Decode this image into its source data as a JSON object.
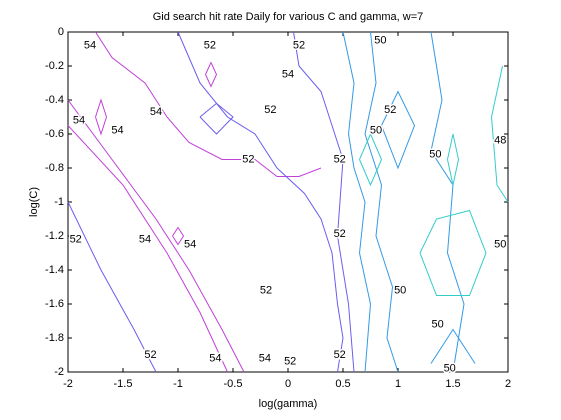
{
  "chart_data": {
    "type": "contour",
    "title": "Gid search hit rate Daily for various C and gamma, w=7",
    "xlabel": "log(gamma)",
    "ylabel": "log(C)",
    "xlim": [
      -2,
      2
    ],
    "ylim": [
      -2,
      0
    ],
    "xticks": [
      -2,
      -1.5,
      -1,
      -0.5,
      0,
      0.5,
      1,
      1.5,
      2
    ],
    "yticks": [
      0,
      -0.2,
      -0.4,
      -0.6,
      -0.8,
      -1,
      -1.2,
      -1.4,
      -1.6,
      -1.8,
      -2
    ],
    "levels": [
      {
        "value": 48,
        "color": "#33cccc"
      },
      {
        "value": 50,
        "color": "#3399e6"
      },
      {
        "value": 52,
        "color": "#6a5ef0"
      },
      {
        "value": 54,
        "color": "#c040d8"
      }
    ],
    "contours": [
      {
        "level": 54,
        "x": [
          -2,
          -1.6,
          -1.2,
          -0.9,
          -0.6,
          -0.4
        ],
        "y": [
          -0.4,
          -0.75,
          -1.1,
          -1.4,
          -1.75,
          -2
        ]
      },
      {
        "level": 54,
        "x": [
          -2,
          -1.5,
          -1.1,
          -0.8,
          -0.55
        ],
        "y": [
          -0.55,
          -0.9,
          -1.3,
          -1.65,
          -2
        ]
      },
      {
        "level": 54,
        "x": [
          -1.75,
          -1.6,
          -1.3,
          -1.1,
          -0.9,
          -0.6,
          -0.3,
          -0.1,
          0.1,
          0.3
        ],
        "y": [
          0,
          -0.15,
          -0.3,
          -0.5,
          -0.65,
          -0.75,
          -0.75,
          -0.85,
          -0.85,
          -0.8
        ]
      },
      {
        "level": 54,
        "x": [
          -1.75,
          -1.7,
          -1.65,
          -1.7,
          -1.75
        ],
        "y": [
          -0.5,
          -0.4,
          -0.5,
          -0.6,
          -0.5
        ]
      },
      {
        "level": 54,
        "x": [
          -0.75,
          -0.7,
          -0.65,
          -0.7,
          -0.75
        ],
        "y": [
          -0.25,
          -0.18,
          -0.25,
          -0.32,
          -0.25
        ]
      },
      {
        "level": 54,
        "x": [
          -1.05,
          -1,
          -0.95,
          -1,
          -1.05
        ],
        "y": [
          -1.2,
          -1.15,
          -1.2,
          -1.25,
          -1.2
        ]
      },
      {
        "level": 52,
        "x": [
          -1.0,
          -0.9,
          -0.8,
          -0.55,
          -0.3,
          -0.1,
          0.15,
          0.3,
          0.4,
          0.45,
          0.5,
          0.45
        ],
        "y": [
          0,
          -0.15,
          -0.3,
          -0.5,
          -0.6,
          -0.8,
          -0.95,
          -1.1,
          -1.3,
          -1.6,
          -1.8,
          -2
        ]
      },
      {
        "level": 52,
        "x": [
          -2,
          -1.7,
          -1.4,
          -1.2
        ],
        "y": [
          -1.0,
          -1.4,
          -1.75,
          -2
        ]
      },
      {
        "level": 52,
        "x": [
          0.05,
          0.1,
          0.3,
          0.4,
          0.5,
          0.45,
          0.55,
          0.6
        ],
        "y": [
          0,
          -0.2,
          -0.35,
          -0.55,
          -0.75,
          -1.2,
          -1.6,
          -2
        ]
      },
      {
        "level": 52,
        "x": [
          -0.8,
          -0.65,
          -0.5,
          -0.65,
          -0.8
        ],
        "y": [
          -0.5,
          -0.42,
          -0.5,
          -0.6,
          -0.5
        ]
      },
      {
        "level": 50,
        "x": [
          0.5,
          0.6,
          0.55,
          0.6,
          0.7,
          0.65,
          0.75,
          0.7
        ],
        "y": [
          0,
          -0.3,
          -0.6,
          -0.8,
          -1.0,
          -1.3,
          -1.6,
          -2
        ]
      },
      {
        "level": 50,
        "x": [
          0.75,
          0.8,
          0.7,
          0.85,
          0.8,
          0.95,
          0.9,
          1.0
        ],
        "y": [
          0,
          -0.3,
          -0.6,
          -0.9,
          -1.2,
          -1.5,
          -1.8,
          -2
        ]
      },
      {
        "level": 50,
        "x": [
          0.85,
          1.0,
          1.15,
          1.0,
          0.85
        ],
        "y": [
          -0.55,
          -0.35,
          -0.55,
          -0.8,
          -0.55
        ]
      },
      {
        "level": 50,
        "x": [
          1.3,
          1.4,
          1.3,
          1.5,
          1.45,
          1.6,
          1.5
        ],
        "y": [
          0,
          -0.4,
          -0.7,
          -0.9,
          -1.3,
          -1.6,
          -2
        ]
      },
      {
        "level": 50,
        "x": [
          1.3,
          1.5,
          1.7
        ],
        "y": [
          -1.95,
          -1.75,
          -1.95
        ]
      },
      {
        "level": 48,
        "x": [
          0.65,
          0.75,
          0.85,
          0.75,
          0.65
        ],
        "y": [
          -0.75,
          -0.6,
          -0.75,
          -0.9,
          -0.75
        ]
      },
      {
        "level": 48,
        "x": [
          1.2,
          1.35,
          1.65,
          1.8,
          1.65,
          1.35,
          1.2
        ],
        "y": [
          -1.3,
          -1.1,
          -1.05,
          -1.3,
          -1.55,
          -1.55,
          -1.3
        ]
      },
      {
        "level": 48,
        "x": [
          1.45,
          1.5,
          1.55,
          1.5,
          1.45
        ],
        "y": [
          -0.75,
          -0.6,
          -0.75,
          -0.9,
          -0.75
        ]
      },
      {
        "level": 48,
        "x": [
          1.95,
          1.85,
          1.9,
          2
        ],
        "y": [
          -0.2,
          -0.5,
          -0.9,
          -1.0
        ]
      }
    ],
    "contour_labels": [
      {
        "value": 54,
        "x": -1.8,
        "y": -0.08
      },
      {
        "value": 52,
        "x": -0.71,
        "y": -0.08
      },
      {
        "value": 52,
        "x": 0.1,
        "y": -0.08
      },
      {
        "value": 50,
        "x": 0.84,
        "y": -0.05
      },
      {
        "value": 54,
        "x": 0,
        "y": -0.25
      },
      {
        "value": 54,
        "x": -1.2,
        "y": -0.47
      },
      {
        "value": 54,
        "x": -1.9,
        "y": -0.52
      },
      {
        "value": 54,
        "x": -1.55,
        "y": -0.58
      },
      {
        "value": 52,
        "x": -0.16,
        "y": -0.46
      },
      {
        "value": 52,
        "x": -0.36,
        "y": -0.75
      },
      {
        "value": 52,
        "x": 0.47,
        "y": -0.75
      },
      {
        "value": 52,
        "x": 0.93,
        "y": -0.46
      },
      {
        "value": 50,
        "x": 0.8,
        "y": -0.58
      },
      {
        "value": 50,
        "x": 1.34,
        "y": -0.72
      },
      {
        "value": 48,
        "x": 1.93,
        "y": -0.64
      },
      {
        "value": 52,
        "x": -1.93,
        "y": -1.22
      },
      {
        "value": 54,
        "x": -1.3,
        "y": -1.22
      },
      {
        "value": 54,
        "x": -0.89,
        "y": -1.25
      },
      {
        "value": 52,
        "x": 0.47,
        "y": -1.19
      },
      {
        "value": 52,
        "x": -0.2,
        "y": -1.52
      },
      {
        "value": 50,
        "x": 1.02,
        "y": -1.52
      },
      {
        "value": 50,
        "x": 1.93,
        "y": -1.25
      },
      {
        "value": 50,
        "x": 1.36,
        "y": -1.72
      },
      {
        "value": 52,
        "x": -1.25,
        "y": -1.9
      },
      {
        "value": 54,
        "x": -0.66,
        "y": -1.92
      },
      {
        "value": 54,
        "x": -0.21,
        "y": -1.92
      },
      {
        "value": 52,
        "x": 0.02,
        "y": -1.94
      },
      {
        "value": 52,
        "x": 0.47,
        "y": -1.9
      },
      {
        "value": 50,
        "x": 1.47,
        "y": -1.98
      }
    ]
  }
}
